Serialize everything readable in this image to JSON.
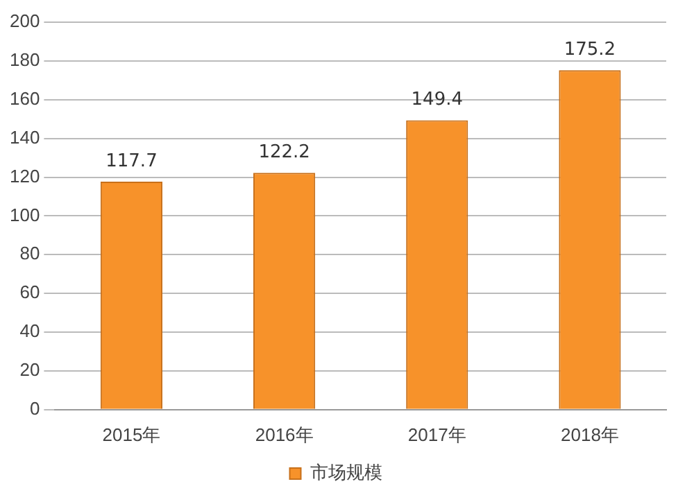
{
  "chart_data": {
    "type": "bar",
    "categories": [
      "2015年",
      "2016年",
      "2017年",
      "2018年"
    ],
    "series": [
      {
        "name": "市场规模",
        "color": "#f7922a",
        "values": [
          117.7,
          122.2,
          149.4,
          175.2
        ]
      }
    ],
    "ylim": [
      0,
      200
    ],
    "yticks": [
      0,
      20,
      40,
      60,
      80,
      100,
      120,
      140,
      160,
      180,
      200
    ],
    "grid": "y",
    "legend": "bottom",
    "data_labels": true
  }
}
